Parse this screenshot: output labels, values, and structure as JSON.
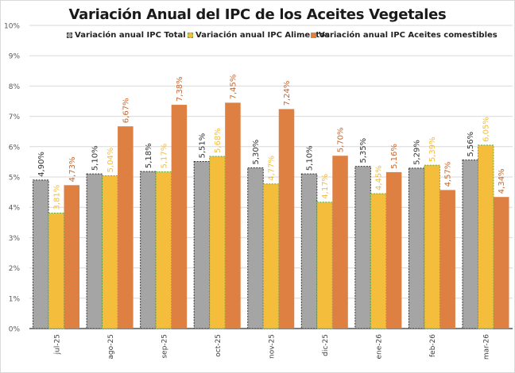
{
  "chart_data": {
    "type": "bar",
    "title": "Variación Anual del IPC de los Aceites Vegetales",
    "xlabel": "",
    "ylabel": "",
    "ylim": [
      0,
      10
    ],
    "y_ticks": [
      "0%",
      "1%",
      "2%",
      "3%",
      "4%",
      "5%",
      "6%",
      "7%",
      "8%",
      "9%",
      "10%"
    ],
    "grid": true,
    "legend_position": "top",
    "categories": [
      "jul-25",
      "ago-25",
      "sep-25",
      "oct-25",
      "nov-25",
      "dic-25",
      "ene-26",
      "feb-26",
      "mar-26"
    ],
    "series": [
      {
        "name": "Variación anual IPC Total",
        "color": "#a5a5a5",
        "border": "#333333",
        "label_color": "#333333",
        "values": [
          4.9,
          5.1,
          5.18,
          5.51,
          5.3,
          5.1,
          5.35,
          5.29,
          5.56
        ],
        "labels": [
          "4,90%",
          "5,10%",
          "5,18%",
          "5,51%",
          "5,30%",
          "5,10%",
          "5,35%",
          "5,29%",
          "5,56%"
        ]
      },
      {
        "name": "Variación anual IPC  Alimentos",
        "color": "#f4bd3b",
        "border": "#5cb04b",
        "label_color": "#f4bd3b",
        "values": [
          3.81,
          5.04,
          5.17,
          5.68,
          4.77,
          4.17,
          4.45,
          5.39,
          6.05
        ],
        "labels": [
          "3,81%",
          "5,04%",
          "5,17%",
          "5,68%",
          "4,77%",
          "4,17%",
          "4,45%",
          "5,39%",
          "6,05%"
        ]
      },
      {
        "name": "Variación anual IPC Aceites comestibles",
        "color": "#de8042",
        "border": "#de8042",
        "label_color": "#c9662a",
        "values": [
          4.73,
          6.67,
          7.38,
          7.45,
          7.24,
          5.7,
          5.16,
          4.57,
          4.34
        ],
        "labels": [
          "4,73%",
          "6,67%",
          "7,38%",
          "7,45%",
          "7,24%",
          "5,70%",
          "5,16%",
          "4,57%",
          "4,34%"
        ]
      }
    ]
  }
}
